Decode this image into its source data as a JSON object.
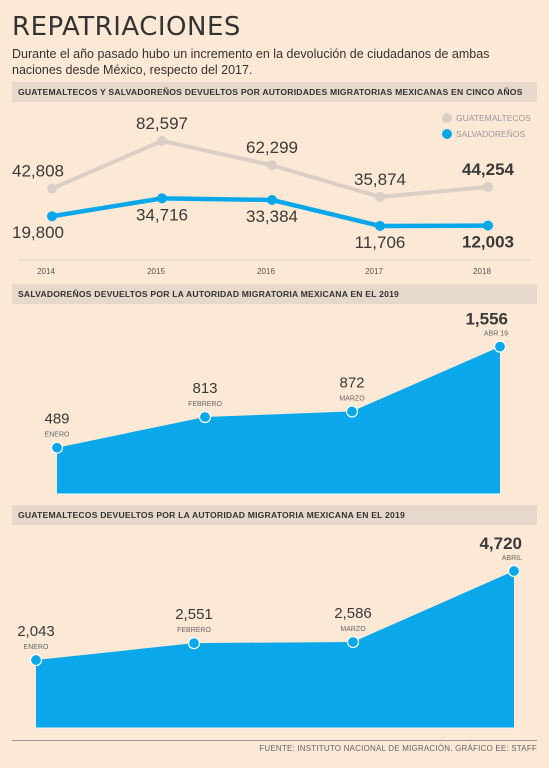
{
  "header": {
    "title": "REPATRIACIONES",
    "subtitle": "Durante el año pasado hubo un incremento en la devolución de ciudadanos de ambas naciones desde México, respecto del 2017."
  },
  "footer": {
    "source": "FUENTE: INSTITUTO NACIONAL DE MIGRACIÓN. GRÁFICO EE: STAFF"
  },
  "colors": {
    "guatemaltecos": "#d9cfc6",
    "salvadorenos": "#0aa8ea",
    "grid": "#d8d0c6",
    "text": "#3a3a3a"
  },
  "chart_data": [
    {
      "type": "line",
      "title": "GUATEMALTECOS Y SALVADOREÑOS DEVUELTOS POR AUTORIDADES MIGRATORIAS MEXICANAS EN CINCO AÑOS",
      "x": [
        "2014",
        "2015",
        "2016",
        "2017",
        "2018"
      ],
      "series": [
        {
          "name": "GUATEMALTECOS",
          "values": [
            42808,
            82597,
            62299,
            35874,
            44254
          ],
          "labels": [
            "42,808",
            "82,597",
            "62,299",
            "35,874",
            "44,254"
          ]
        },
        {
          "name": "SALVADOREÑOS",
          "values": [
            19800,
            34716,
            33384,
            11706,
            12003
          ],
          "labels": [
            "19,800",
            "34,716",
            "33,384",
            "11,706",
            "12,003"
          ]
        }
      ],
      "legend": "top-right",
      "grid": false
    },
    {
      "type": "area",
      "title": "SALVADOREÑOS DEVUELTOS POR LA AUTORIDAD MIGRATORIA MEXICANA EN EL 2019",
      "categories": [
        "ENERO",
        "FEBRERO",
        "MARZO",
        "ABR 19"
      ],
      "values": [
        489,
        813,
        872,
        1556
      ],
      "labels": [
        "489",
        "813",
        "872",
        "1,556"
      ],
      "ylim": [
        0,
        1700
      ]
    },
    {
      "type": "area",
      "title": "GUATEMALTECOS DEVUELTOS POR LA AUTORIDAD MIGRATORIA MEXICANA EN EL 2019",
      "categories": [
        "ENERO",
        "FEBRERO",
        "MARZO",
        "ABRIL"
      ],
      "values": [
        2043,
        2551,
        2586,
        4720
      ],
      "labels": [
        "2,043",
        "2,551",
        "2,586",
        "4,720"
      ],
      "ylim": [
        0,
        5200
      ]
    }
  ]
}
